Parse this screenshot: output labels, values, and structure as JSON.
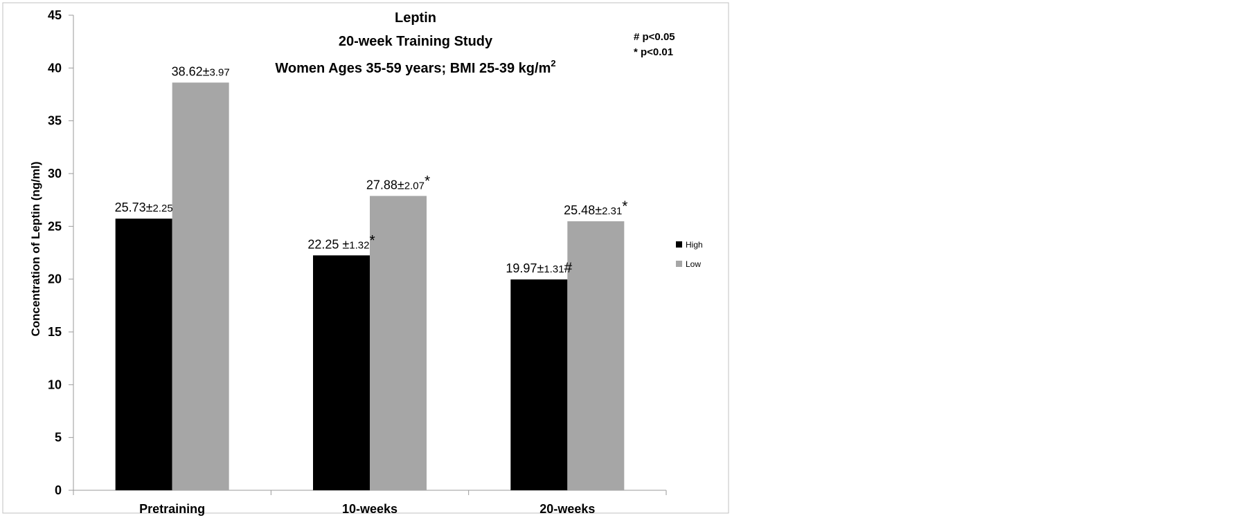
{
  "chart_data": {
    "type": "bar",
    "title_lines": [
      "Leptin",
      "20-week Training Study",
      "Women Ages 35-59 years;  BMI 25-39 kg/m"
    ],
    "title_superscript": "2",
    "significance_notes": [
      "# p<0.05",
      "* p<0.01"
    ],
    "ylabel": "Concentration of Leptin (ng/ml)",
    "xlabel": "",
    "ylim": [
      0,
      45
    ],
    "yticks": [
      0,
      5,
      10,
      15,
      20,
      25,
      30,
      35,
      40,
      45
    ],
    "categories": [
      "Pretraining",
      "10-weeks",
      "20-weeks"
    ],
    "series": [
      {
        "name": "High",
        "color": "#000000",
        "values": [
          25.73,
          22.25,
          19.97
        ],
        "labels": [
          {
            "mean": "25.73",
            "pm": "±",
            "sd": "2.25",
            "mark": ""
          },
          {
            "mean": "22.25",
            "pm": " ±",
            "sd": "1.32",
            "mark": "*"
          },
          {
            "mean": "19.97",
            "pm": "±",
            "sd": "1.31",
            "mark": "#"
          }
        ]
      },
      {
        "name": "Low",
        "color": "#a6a6a6",
        "values": [
          38.62,
          27.88,
          25.48
        ],
        "labels": [
          {
            "mean": "38.62",
            "pm": "±",
            "sd": "3.97",
            "mark": ""
          },
          {
            "mean": "27.88",
            "pm": "±",
            "sd": "2.07",
            "mark": "*"
          },
          {
            "mean": "25.48",
            "pm": "±",
            "sd": "2.31",
            "mark": "*"
          }
        ]
      }
    ],
    "legend_position": "right",
    "grid": false
  }
}
